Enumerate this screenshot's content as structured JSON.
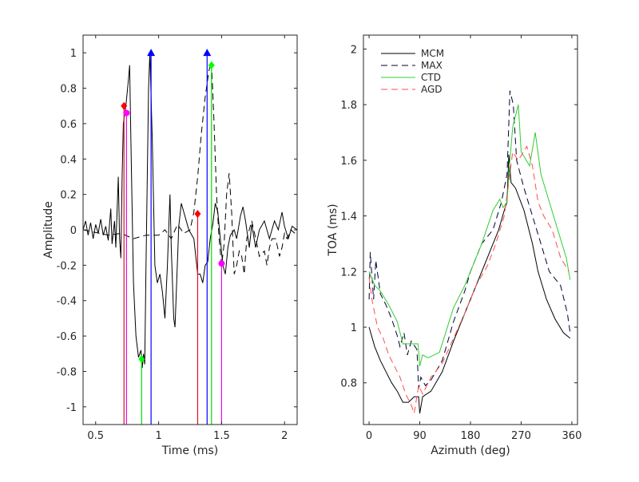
{
  "chart_data": [
    {
      "type": "line",
      "title": "",
      "xlabel": "Time (ms)",
      "ylabel": "Amplitude",
      "xlim": [
        0.4,
        2.1
      ],
      "ylim": [
        -1.1,
        1.1
      ],
      "xticks": [
        0.5,
        1,
        1.5,
        2
      ],
      "xtick_labels": [
        "0.5",
        "1",
        "1.5",
        "2"
      ],
      "yticks": [
        -1,
        -0.8,
        -0.6,
        -0.4,
        -0.2,
        0,
        0.2,
        0.4,
        0.6,
        0.8,
        1
      ],
      "ytick_labels": [
        "-1",
        "-0.8",
        "-0.6",
        "-0.4",
        "-0.2",
        "0",
        "0.2",
        "0.4",
        "0.6",
        "0.8",
        "1"
      ],
      "grid": false,
      "series": [
        {
          "name": "waveform-solid",
          "style": "solid",
          "color": "#000000",
          "x": [
            0.4,
            0.42,
            0.44,
            0.46,
            0.48,
            0.5,
            0.52,
            0.54,
            0.56,
            0.58,
            0.6,
            0.62,
            0.63,
            0.65,
            0.66,
            0.68,
            0.69,
            0.7,
            0.71,
            0.72,
            0.74,
            0.76,
            0.77,
            0.78,
            0.8,
            0.82,
            0.84,
            0.86,
            0.87,
            0.88,
            0.89,
            0.9,
            0.92,
            0.93,
            0.95,
            0.97,
            0.99,
            1.01,
            1.03,
            1.05,
            1.07,
            1.09,
            1.1,
            1.12,
            1.13,
            1.16,
            1.18,
            1.2,
            1.24,
            1.28,
            1.31,
            1.33,
            1.35,
            1.37,
            1.39,
            1.41,
            1.43,
            1.45,
            1.47,
            1.49,
            1.51,
            1.53,
            1.55,
            1.57,
            1.6,
            1.62,
            1.65,
            1.67,
            1.69,
            1.72,
            1.74,
            1.77,
            1.8,
            1.84,
            1.88,
            1.92,
            1.95,
            1.98,
            2.0,
            2.03,
            2.06,
            2.1
          ],
          "y": [
            0,
            0.05,
            -0.03,
            0.04,
            -0.05,
            0.03,
            -0.02,
            0.06,
            -0.03,
            0.02,
            -0.06,
            0.12,
            -0.08,
            0.05,
            -0.1,
            0.3,
            -0.05,
            -0.16,
            0.3,
            0.6,
            0.7,
            0.85,
            0.93,
            0.5,
            -0.3,
            -0.6,
            -0.72,
            -0.68,
            -0.78,
            -0.7,
            -0.76,
            -0.2,
            0.8,
            1.0,
            0.5,
            -0.2,
            -0.3,
            -0.25,
            -0.35,
            -0.5,
            -0.2,
            0.2,
            -0.1,
            -0.5,
            -0.55,
            0.02,
            0.15,
            0.1,
            0.0,
            -0.05,
            -0.25,
            -0.25,
            -0.3,
            -0.2,
            -0.18,
            -0.05,
            0.03,
            0.15,
            0.1,
            -0.05,
            -0.2,
            -0.25,
            -0.1,
            -0.03,
            0.0,
            -0.05,
            0.08,
            0.13,
            0.05,
            -0.1,
            0.03,
            -0.1,
            0.0,
            0.05,
            -0.05,
            0.05,
            0.0,
            0.1,
            0.02,
            -0.05,
            0.02,
            0.0
          ]
        },
        {
          "name": "waveform-dashed",
          "style": "dashed",
          "color": "#000000",
          "x": [
            0.4,
            0.6,
            0.7,
            0.8,
            0.9,
            1.0,
            1.05,
            1.1,
            1.15,
            1.2,
            1.25,
            1.28,
            1.31,
            1.34,
            1.37,
            1.4,
            1.42,
            1.44,
            1.46,
            1.48,
            1.5,
            1.52,
            1.54,
            1.56,
            1.58,
            1.6,
            1.62,
            1.64,
            1.66,
            1.68,
            1.7,
            1.74,
            1.78,
            1.8,
            1.84,
            1.86,
            1.88,
            1.9,
            1.93,
            1.96,
            1.98,
            2.0,
            2.02,
            2.05,
            2.1
          ],
          "y": [
            0.0,
            -0.03,
            -0.02,
            -0.05,
            -0.03,
            -0.03,
            0.0,
            -0.05,
            0.03,
            -0.02,
            0.0,
            0.1,
            0.3,
            0.55,
            0.75,
            0.9,
            0.95,
            0.6,
            0.2,
            -0.05,
            -0.2,
            -0.08,
            0.2,
            0.32,
            0.1,
            -0.25,
            -0.2,
            -0.12,
            -0.15,
            -0.25,
            -0.05,
            0.05,
            -0.08,
            -0.15,
            -0.12,
            -0.2,
            -0.1,
            -0.05,
            -0.05,
            -0.15,
            -0.1,
            -0.02,
            -0.05,
            0.0,
            -0.03
          ]
        }
      ],
      "markers": [
        {
          "name": "red-marker-1",
          "shape": "diamond",
          "color": "#ff0000",
          "stem_color": "#e0102a",
          "x": 0.725,
          "y": 0.7
        },
        {
          "name": "magenta-marker-1",
          "shape": "circle",
          "color": "#ff00ff",
          "stem_color": "#e010e0",
          "x": 0.745,
          "y": 0.66
        },
        {
          "name": "green-marker-1",
          "shape": "diamond",
          "color": "#00ff00",
          "stem_color": "#00e000",
          "x": 0.865,
          "y": -0.73
        },
        {
          "name": "blue-marker-1",
          "shape": "triangle",
          "color": "#0000ff",
          "stem_color": "#0000ff",
          "x": 0.94,
          "y": 1.0
        },
        {
          "name": "red-marker-2",
          "shape": "diamond",
          "color": "#ff0000",
          "stem_color": "#e0102a",
          "x": 1.31,
          "y": 0.09
        },
        {
          "name": "blue-marker-2",
          "shape": "triangle",
          "color": "#0000ff",
          "stem_color": "#0000ff",
          "x": 1.385,
          "y": 1.0
        },
        {
          "name": "green-marker-2",
          "shape": "diamond",
          "color": "#00ff00",
          "stem_color": "#00e000",
          "x": 1.42,
          "y": 0.93
        },
        {
          "name": "magenta-marker-2",
          "shape": "circle",
          "color": "#ff00ff",
          "stem_color": "#e010e0",
          "x": 1.5,
          "y": -0.19
        }
      ]
    },
    {
      "type": "line",
      "title": "",
      "xlabel": "Azimuth (deg)",
      "ylabel": "TOA (ms)",
      "xlim": [
        -10,
        370
      ],
      "ylim": [
        0.65,
        2.05
      ],
      "xticks": [
        0,
        90,
        180,
        270,
        360
      ],
      "xtick_labels": [
        "0",
        "90",
        "180",
        "270",
        "360"
      ],
      "yticks": [
        0.8,
        1,
        1.2,
        1.4,
        1.6,
        1.8,
        2
      ],
      "ytick_labels": [
        "0.8",
        "1",
        "1.2",
        "1.4",
        "1.6",
        "1.8",
        "2"
      ],
      "grid": false,
      "legend_position": "top-left",
      "series": [
        {
          "name": "MCM",
          "style": "solid",
          "color": "#000000",
          "x": [
            0,
            10,
            20,
            30,
            40,
            50,
            60,
            70,
            80,
            88,
            90,
            95,
            110,
            130,
            150,
            170,
            190,
            210,
            230,
            240,
            245,
            248,
            252,
            260,
            275,
            290,
            300,
            315,
            330,
            345,
            357
          ],
          "y": [
            1.0,
            0.93,
            0.88,
            0.84,
            0.8,
            0.77,
            0.73,
            0.73,
            0.75,
            0.75,
            0.69,
            0.75,
            0.77,
            0.84,
            0.95,
            1.05,
            1.15,
            1.25,
            1.35,
            1.42,
            1.45,
            1.62,
            1.52,
            1.5,
            1.42,
            1.3,
            1.2,
            1.1,
            1.03,
            0.98,
            0.96
          ]
        },
        {
          "name": "MAX",
          "style": "dashed",
          "color": "#000033",
          "x": [
            0,
            2,
            8,
            12,
            20,
            30,
            40,
            50,
            55,
            62,
            68,
            75,
            85,
            88,
            92,
            100,
            110,
            130,
            150,
            170,
            180,
            200,
            220,
            235,
            245,
            250,
            256,
            262,
            275,
            290,
            305,
            320,
            340,
            352,
            357
          ],
          "y": [
            1.1,
            1.27,
            1.1,
            1.24,
            1.12,
            1.08,
            1.03,
            0.97,
            0.93,
            0.98,
            0.9,
            0.95,
            0.92,
            0.78,
            0.82,
            0.79,
            0.81,
            0.88,
            1.02,
            1.13,
            1.2,
            1.3,
            1.35,
            1.45,
            1.55,
            1.85,
            1.8,
            1.6,
            1.5,
            1.4,
            1.3,
            1.2,
            1.15,
            1.05,
            0.98
          ]
        },
        {
          "name": "CTD",
          "style": "solid",
          "color": "#33cc33",
          "x": [
            0,
            10,
            20,
            35,
            50,
            60,
            75,
            87,
            90,
            95,
            105,
            115,
            125,
            150,
            170,
            200,
            220,
            232,
            238,
            245,
            250,
            255,
            265,
            270,
            285,
            295,
            305,
            320,
            335,
            350,
            357
          ],
          "y": [
            1.2,
            1.15,
            1.13,
            1.08,
            1.02,
            0.94,
            0.94,
            0.94,
            0.86,
            0.9,
            0.89,
            0.9,
            0.91,
            1.07,
            1.15,
            1.3,
            1.42,
            1.46,
            1.43,
            1.45,
            1.6,
            1.72,
            1.8,
            1.63,
            1.58,
            1.7,
            1.55,
            1.45,
            1.35,
            1.25,
            1.17
          ]
        },
        {
          "name": "AGD",
          "style": "dashed",
          "color": "#ff4d4d",
          "x": [
            0,
            5,
            15,
            25,
            35,
            45,
            55,
            65,
            75,
            80,
            88,
            95,
            110,
            130,
            150,
            170,
            190,
            210,
            225,
            240,
            255,
            265,
            280,
            290,
            300,
            310,
            325,
            340,
            355
          ],
          "y": [
            1.18,
            1.1,
            1.0,
            0.96,
            0.9,
            0.86,
            0.82,
            0.76,
            0.72,
            0.69,
            0.79,
            0.76,
            0.82,
            0.87,
            0.96,
            1.05,
            1.15,
            1.22,
            1.3,
            1.4,
            1.63,
            1.6,
            1.65,
            1.58,
            1.45,
            1.4,
            1.35,
            1.25,
            1.2
          ]
        }
      ]
    }
  ]
}
